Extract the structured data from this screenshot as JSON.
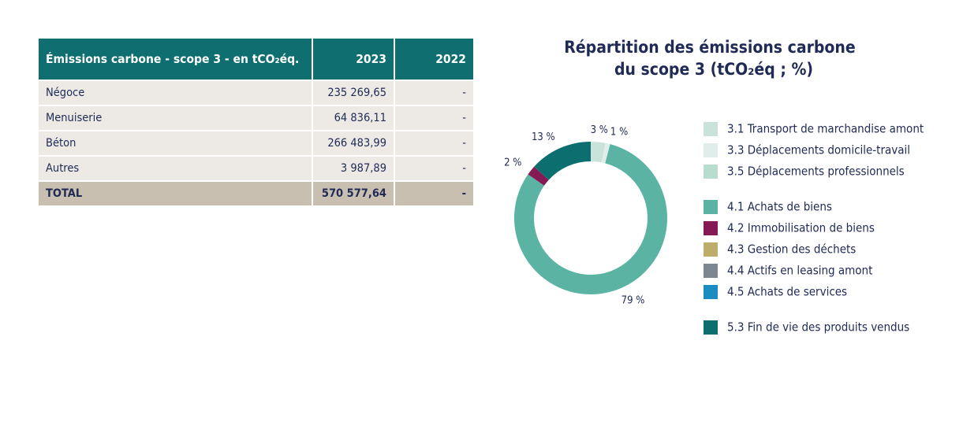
{
  "table": {
    "header": [
      "Émissions carbone - scope 3 - en tCO₂éq.",
      "2023",
      "2022"
    ],
    "rows": [
      [
        "Négoce",
        "235 269,65",
        "-"
      ],
      [
        "Menuiserie",
        "64 836,11",
        "-"
      ],
      [
        "Béton",
        "266 483,99",
        "-"
      ],
      [
        "Autres",
        "3 987,89",
        "-"
      ]
    ],
    "total": [
      "TOTAL",
      "570 577,64",
      "-"
    ]
  },
  "chart_data": {
    "type": "donut",
    "title": [
      "Répartition des émissions carbone",
      "du scope 3 (tCO₂éq ; %)"
    ],
    "categories": [
      "3.1 Transport de marchandise amont",
      "3.3 Déplacements domicile-travail",
      "3.5 Déplacements professionnels",
      "4.1 Achats de biens",
      "4.2 Immobilisation de biens",
      "4.3 Gestion des déchets",
      "4.4 Actifs en leasing amont",
      "4.5 Achats de services",
      "5.3 Fin de vie des produits vendus"
    ],
    "values": [
      3,
      1,
      0,
      79,
      2,
      0,
      0,
      0,
      13
    ],
    "value_labels": [
      "3 %",
      "1 %",
      null,
      "79 %",
      "2 %",
      null,
      null,
      null,
      "13 %"
    ],
    "colors": [
      "#c9e2da",
      "#dfeeea",
      "#b8dccd",
      "#5bb3a4",
      "#861a55",
      "#bcae6a",
      "#7c8690",
      "#1a8cc0",
      "#0d6e70"
    ]
  }
}
